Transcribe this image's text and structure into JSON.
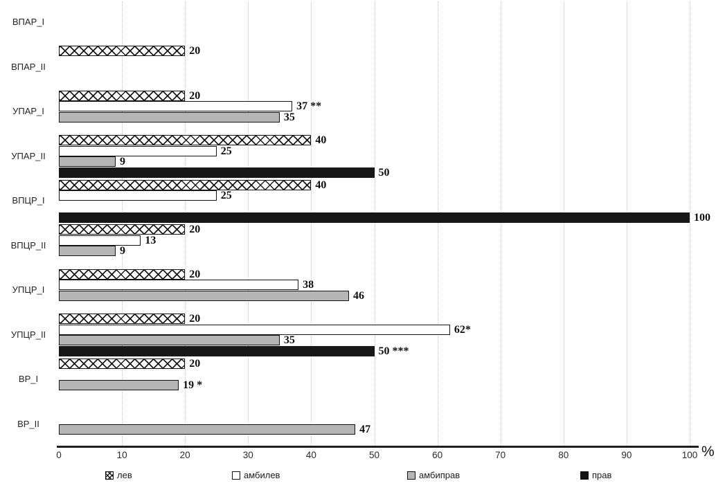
{
  "chart_data": {
    "type": "bar",
    "orientation": "horizontal",
    "xlabel_unit": "%",
    "xlim": [
      0,
      100
    ],
    "x_ticks": [
      "0",
      "10",
      "20",
      "30",
      "40",
      "50",
      "60",
      "70",
      "80",
      "90",
      "100"
    ],
    "grid": "vertical-dotted",
    "legend_position": "bottom",
    "categories": [
      "ВПАР_I",
      "ВПАР_II",
      "УПАР_I",
      "УПАР_II",
      "ВПЦР_I",
      "ВПЦР_II",
      "УПЦР_I",
      "УПЦР_II",
      "ВР_I",
      "ВР_II"
    ],
    "series": [
      {
        "name": "лев",
        "style": "crosshatch",
        "values": [
          null,
          20,
          20,
          40,
          40,
          20,
          20,
          20,
          20,
          null
        ],
        "value_labels": [
          null,
          "20",
          "20",
          "40",
          "40",
          "20",
          "20",
          "20",
          "20",
          null
        ]
      },
      {
        "name": "амбилев",
        "style": "white",
        "values": [
          null,
          null,
          37,
          25,
          25,
          13,
          38,
          62,
          null,
          null
        ],
        "value_labels": [
          null,
          null,
          "37 **",
          "25",
          "25",
          "13",
          "38",
          "62*",
          null,
          null
        ]
      },
      {
        "name": "амбиправ",
        "style": "gray",
        "values": [
          null,
          null,
          35,
          9,
          null,
          9,
          46,
          35,
          19,
          47
        ],
        "value_labels": [
          null,
          null,
          "35",
          "9",
          null,
          "9",
          "46",
          "35",
          "19 *",
          "47"
        ]
      },
      {
        "name": "прав",
        "style": "black",
        "values": [
          null,
          null,
          null,
          50,
          100,
          null,
          null,
          50,
          null,
          null
        ],
        "value_labels": [
          null,
          null,
          null,
          "50",
          "100",
          null,
          null,
          "50 ***",
          null,
          null
        ]
      }
    ]
  },
  "legend": {
    "items": [
      {
        "label": "лев",
        "style": "crosshatch"
      },
      {
        "label": "амбилев",
        "style": "white"
      },
      {
        "label": "амбиправ",
        "style": "gray"
      },
      {
        "label": "прав",
        "style": "black"
      }
    ]
  },
  "colors": {
    "bar_gray": "#b5b5b5",
    "bar_black": "#171717",
    "bar_white": "#fdfdfd",
    "bar_border": "#121212",
    "hatch_line": "#1a1a1a",
    "grid_line": "#c3c3c3",
    "axis_line": "#1e1e1e",
    "text": "#1b1b1b"
  }
}
